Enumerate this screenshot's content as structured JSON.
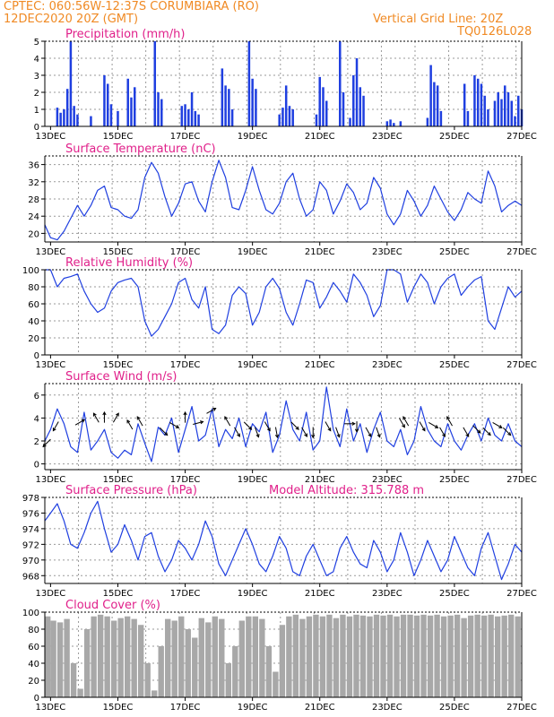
{
  "header": {
    "line1_left": "CPTEC:   060:56W-12:37S   CORUMBIARA (RO)",
    "line2_left": "12DEC2020 20Z (GMT)",
    "line2_right": "Vertical Grid Line: 20Z",
    "line3_right": "TQ0126L028"
  },
  "colors": {
    "header": "#f08a24",
    "title": "#e0208a",
    "line": "#1f3fe0",
    "bar": "#1f3fe0",
    "cloud": "#a8a8a8"
  },
  "x_axis": {
    "tick_labels": [
      "13DEC",
      "15DEC",
      "17DEC",
      "19DEC",
      "21DEC",
      "23DEC",
      "25DEC",
      "27DEC"
    ],
    "start_day": 12.83,
    "end_day": 27.0,
    "label_days": [
      13,
      15,
      17,
      19,
      21,
      23,
      25,
      27
    ],
    "grid_days": [
      12.83,
      13.83,
      14.83,
      15.83,
      16.83,
      17.83,
      18.83,
      19.83,
      20.83,
      21.83,
      22.83,
      23.83,
      24.83,
      25.83,
      26.83
    ]
  },
  "chart_data": [
    {
      "type": "bar",
      "title": "Precipitation (mm/h)",
      "ylim": [
        0,
        5
      ],
      "yticks": [
        "0",
        "1",
        "2",
        "3",
        "4",
        "5"
      ],
      "events": [
        [
          13.2,
          1.1
        ],
        [
          13.3,
          0.8
        ],
        [
          13.4,
          1.0
        ],
        [
          13.5,
          2.2
        ],
        [
          13.6,
          5.0
        ],
        [
          13.7,
          1.2
        ],
        [
          13.8,
          0.7
        ],
        [
          14.2,
          0.6
        ],
        [
          14.6,
          3.0
        ],
        [
          14.7,
          2.5
        ],
        [
          14.8,
          1.3
        ],
        [
          15.0,
          0.9
        ],
        [
          15.3,
          2.8
        ],
        [
          15.4,
          1.7
        ],
        [
          15.5,
          2.3
        ],
        [
          16.9,
          1.2
        ],
        [
          17.0,
          1.3
        ],
        [
          17.1,
          1.0
        ],
        [
          17.2,
          2.0
        ],
        [
          17.3,
          0.9
        ],
        [
          17.4,
          0.7
        ],
        [
          18.9,
          5.0
        ],
        [
          19.0,
          2.8
        ],
        [
          19.1,
          2.2
        ],
        [
          20.9,
          0.7
        ],
        [
          21.0,
          2.9
        ],
        [
          21.1,
          2.3
        ],
        [
          21.2,
          1.5
        ],
        [
          21.9,
          0.5
        ],
        [
          22.0,
          3.0
        ],
        [
          22.1,
          4.0
        ],
        [
          22.2,
          2.3
        ],
        [
          22.3,
          1.8
        ],
        [
          24.2,
          0.5
        ],
        [
          24.3,
          3.6
        ],
        [
          24.4,
          2.6
        ],
        [
          24.5,
          2.4
        ],
        [
          24.6,
          0.9
        ],
        [
          25.3,
          2.5
        ],
        [
          25.4,
          0.9
        ],
        [
          26.8,
          0.6
        ],
        [
          26.9,
          1.8
        ],
        [
          27.0,
          1.0
        ],
        [
          16.1,
          5.0
        ],
        [
          16.2,
          2.0
        ],
        [
          16.3,
          1.6
        ],
        [
          18.1,
          3.4
        ],
        [
          18.2,
          2.4
        ],
        [
          18.3,
          2.2
        ],
        [
          18.4,
          1.0
        ],
        [
          19.8,
          0.7
        ],
        [
          19.9,
          1.1
        ],
        [
          20.0,
          2.4
        ],
        [
          20.1,
          1.2
        ],
        [
          20.2,
          1.0
        ],
        [
          21.6,
          5.0
        ],
        [
          21.7,
          2.0
        ],
        [
          23.0,
          0.3
        ],
        [
          23.1,
          0.4
        ],
        [
          23.2,
          0.2
        ],
        [
          23.4,
          0.3
        ],
        [
          25.6,
          3.0
        ],
        [
          25.7,
          2.8
        ],
        [
          25.8,
          2.5
        ],
        [
          25.9,
          1.8
        ],
        [
          26.0,
          1.0
        ],
        [
          26.2,
          1.5
        ],
        [
          26.3,
          2.0
        ],
        [
          26.4,
          1.6
        ],
        [
          26.5,
          2.4
        ],
        [
          26.6,
          2.0
        ],
        [
          26.7,
          1.5
        ]
      ]
    },
    {
      "type": "line",
      "title": "Surface Temperature (nC)",
      "ylim": [
        18,
        38
      ],
      "yticks": [
        "20",
        "24",
        "28",
        "32",
        "36"
      ],
      "x": [
        12.83,
        13.0,
        13.2,
        13.4,
        13.6,
        13.8,
        14.0,
        14.2,
        14.4,
        14.6,
        14.8,
        15.0,
        15.2,
        15.4,
        15.6,
        15.8,
        16.0,
        16.2,
        16.4,
        16.6,
        16.8,
        17.0,
        17.2,
        17.4,
        17.6,
        17.8,
        18.0,
        18.2,
        18.4,
        18.6,
        18.8,
        19.0,
        19.2,
        19.4,
        19.6,
        19.8,
        20.0,
        20.2,
        20.4,
        20.6,
        20.8,
        21.0,
        21.2,
        21.4,
        21.6,
        21.8,
        22.0,
        22.2,
        22.4,
        22.6,
        22.8,
        23.0,
        23.2,
        23.4,
        23.6,
        23.8,
        24.0,
        24.2,
        24.4,
        24.6,
        24.8,
        25.0,
        25.2,
        25.4,
        25.6,
        25.8,
        26.0,
        26.2,
        26.4,
        26.6,
        26.8,
        27.0
      ],
      "values": [
        22.0,
        19.0,
        18.5,
        20.5,
        23.5,
        26.5,
        24.0,
        26.5,
        30.0,
        31.0,
        26.0,
        25.5,
        24.0,
        23.5,
        25.5,
        33.0,
        36.5,
        34.0,
        28.5,
        24.0,
        27.0,
        31.5,
        32.0,
        27.5,
        25.0,
        32.0,
        37.0,
        33.0,
        26.0,
        25.5,
        30.0,
        35.5,
        30.0,
        25.5,
        24.5,
        27.0,
        32.0,
        34.0,
        28.0,
        24.0,
        25.5,
        32.0,
        30.0,
        24.5,
        27.5,
        31.5,
        29.5,
        25.5,
        27.0,
        33.0,
        30.5,
        24.5,
        22.0,
        24.5,
        30.0,
        27.5,
        24.0,
        26.5,
        31.0,
        28.0,
        25.0,
        23.0,
        25.5,
        29.5,
        28.0,
        27.0,
        34.5,
        31.0,
        25.0,
        26.5,
        27.5,
        26.5
      ]
    },
    {
      "type": "line",
      "title": "Relative Humidity (%)",
      "ylim": [
        0,
        100
      ],
      "yticks": [
        "0",
        "20",
        "40",
        "60",
        "80",
        "100"
      ],
      "x": [
        12.83,
        13.0,
        13.2,
        13.4,
        13.6,
        13.8,
        14.0,
        14.2,
        14.4,
        14.6,
        14.8,
        15.0,
        15.2,
        15.4,
        15.6,
        15.8,
        16.0,
        16.2,
        16.4,
        16.6,
        16.8,
        17.0,
        17.2,
        17.4,
        17.6,
        17.8,
        18.0,
        18.2,
        18.4,
        18.6,
        18.8,
        19.0,
        19.2,
        19.4,
        19.6,
        19.8,
        20.0,
        20.2,
        20.4,
        20.6,
        20.8,
        21.0,
        21.2,
        21.4,
        21.6,
        21.8,
        22.0,
        22.2,
        22.4,
        22.6,
        22.8,
        23.0,
        23.2,
        23.4,
        23.6,
        23.8,
        24.0,
        24.2,
        24.4,
        24.6,
        24.8,
        25.0,
        25.2,
        25.4,
        25.6,
        25.8,
        26.0,
        26.2,
        26.4,
        26.6,
        26.8,
        27.0
      ],
      "values": [
        100,
        100,
        80,
        90,
        92,
        95,
        75,
        60,
        50,
        55,
        75,
        85,
        88,
        90,
        80,
        40,
        22,
        30,
        45,
        60,
        85,
        90,
        65,
        55,
        80,
        30,
        25,
        35,
        70,
        80,
        72,
        35,
        50,
        80,
        90,
        78,
        50,
        35,
        60,
        88,
        85,
        55,
        68,
        85,
        75,
        62,
        95,
        85,
        70,
        45,
        58,
        100,
        100,
        95,
        62,
        80,
        95,
        85,
        60,
        80,
        90,
        95,
        70,
        80,
        88,
        92,
        40,
        30,
        55,
        80,
        68,
        75
      ]
    },
    {
      "type": "line",
      "title": "Surface Wind (m/s)",
      "ylim": [
        -0.5,
        7
      ],
      "yticks": [
        "0",
        "2",
        "4",
        "6"
      ],
      "x": [
        12.83,
        13.0,
        13.2,
        13.4,
        13.6,
        13.8,
        14.0,
        14.2,
        14.4,
        14.6,
        14.8,
        15.0,
        15.2,
        15.4,
        15.6,
        15.8,
        16.0,
        16.2,
        16.4,
        16.6,
        16.8,
        17.0,
        17.2,
        17.4,
        17.6,
        17.8,
        18.0,
        18.2,
        18.4,
        18.6,
        18.8,
        19.0,
        19.2,
        19.4,
        19.6,
        19.8,
        20.0,
        20.2,
        20.4,
        20.6,
        20.8,
        21.0,
        21.2,
        21.4,
        21.6,
        21.8,
        22.0,
        22.2,
        22.4,
        22.6,
        22.8,
        23.0,
        23.2,
        23.4,
        23.6,
        23.8,
        24.0,
        24.2,
        24.4,
        24.6,
        24.8,
        25.0,
        25.2,
        25.4,
        25.6,
        25.8,
        26.0,
        26.2,
        26.4,
        26.6,
        26.8,
        27.0
      ],
      "values": [
        2.0,
        3.0,
        4.8,
        3.5,
        1.5,
        1.0,
        4.5,
        1.2,
        2.0,
        3.0,
        1.0,
        0.5,
        1.2,
        0.8,
        3.5,
        1.8,
        0.2,
        3.2,
        2.5,
        4.0,
        1.0,
        3.0,
        5.0,
        2.0,
        2.5,
        4.8,
        1.5,
        3.0,
        2.2,
        4.0,
        1.5,
        3.5,
        2.8,
        4.5,
        1.0,
        2.5,
        5.5,
        3.0,
        2.0,
        4.5,
        1.2,
        2.0,
        6.7,
        3.0,
        1.5,
        4.8,
        2.0,
        3.5,
        1.0,
        3.0,
        4.5,
        2.0,
        1.5,
        3.0,
        0.8,
        2.0,
        5.0,
        3.0,
        2.0,
        1.5,
        3.5,
        2.0,
        1.2,
        2.5,
        3.5,
        2.0,
        4.0,
        2.5,
        2.0,
        3.5,
        2.0,
        1.5
      ],
      "arrows": [
        [
          12.95,
          2.0,
          225
        ],
        [
          13.2,
          3.5,
          210
        ],
        [
          13.8,
          3.5,
          60
        ],
        [
          14.4,
          3.8,
          330
        ],
        [
          14.6,
          3.8,
          0
        ],
        [
          14.9,
          3.8,
          30
        ],
        [
          15.4,
          3.2,
          330
        ],
        [
          15.7,
          3.5,
          330
        ],
        [
          16.3,
          3.0,
          135
        ],
        [
          16.6,
          3.5,
          120
        ],
        [
          17.0,
          3.8,
          0
        ],
        [
          17.3,
          3.5,
          75
        ],
        [
          17.7,
          4.5,
          60
        ],
        [
          18.3,
          3.5,
          330
        ],
        [
          18.5,
          3.0,
          150
        ],
        [
          18.8,
          3.5,
          135
        ],
        [
          19.1,
          3.0,
          160
        ],
        [
          19.4,
          3.5,
          150
        ],
        [
          19.7,
          3.0,
          170
        ],
        [
          20.2,
          3.5,
          135
        ],
        [
          20.5,
          3.0,
          150
        ],
        [
          20.8,
          3.0,
          180
        ],
        [
          21.2,
          3.5,
          150
        ],
        [
          21.5,
          3.0,
          160
        ],
        [
          21.8,
          3.5,
          90
        ],
        [
          22.1,
          3.5,
          180
        ],
        [
          22.4,
          3.0,
          150
        ],
        [
          22.7,
          3.0,
          160
        ],
        [
          23.4,
          3.8,
          150
        ],
        [
          23.6,
          3.5,
          330
        ],
        [
          24.0,
          3.5,
          150
        ],
        [
          24.3,
          3.5,
          120
        ],
        [
          24.6,
          3.0,
          150
        ],
        [
          24.9,
          3.5,
          330
        ],
        [
          25.3,
          3.0,
          150
        ],
        [
          25.6,
          3.2,
          135
        ],
        [
          25.9,
          3.0,
          135
        ],
        [
          26.2,
          3.5,
          120
        ],
        [
          26.5,
          3.0,
          135
        ]
      ]
    },
    {
      "type": "line",
      "title": "Surface Pressure (hPa)",
      "annotation": "Model Altitude: 315.788  m",
      "ylim": [
        967,
        978
      ],
      "yticks": [
        "968",
        "970",
        "972",
        "974",
        "976",
        "978"
      ],
      "x": [
        12.83,
        13.0,
        13.2,
        13.4,
        13.6,
        13.8,
        14.0,
        14.2,
        14.4,
        14.6,
        14.8,
        15.0,
        15.2,
        15.4,
        15.6,
        15.8,
        16.0,
        16.2,
        16.4,
        16.6,
        16.8,
        17.0,
        17.2,
        17.4,
        17.6,
        17.8,
        18.0,
        18.2,
        18.4,
        18.6,
        18.8,
        19.0,
        19.2,
        19.4,
        19.6,
        19.8,
        20.0,
        20.2,
        20.4,
        20.6,
        20.8,
        21.0,
        21.2,
        21.4,
        21.6,
        21.8,
        22.0,
        22.2,
        22.4,
        22.6,
        22.8,
        23.0,
        23.2,
        23.4,
        23.6,
        23.8,
        24.0,
        24.2,
        24.4,
        24.6,
        24.8,
        25.0,
        25.2,
        25.4,
        25.6,
        25.8,
        26.0,
        26.2,
        26.4,
        26.6,
        26.8,
        27.0
      ],
      "values": [
        975.0,
        976.0,
        977.2,
        975.0,
        972.0,
        971.5,
        973.5,
        976.0,
        977.5,
        974.0,
        971.0,
        972.0,
        974.5,
        972.5,
        970.0,
        973.0,
        973.5,
        970.5,
        968.5,
        970.0,
        972.5,
        971.5,
        970.0,
        972.0,
        975.0,
        973.0,
        969.5,
        968.0,
        970.0,
        972.0,
        974.0,
        972.0,
        969.5,
        968.5,
        970.5,
        973.0,
        971.5,
        968.5,
        968.0,
        970.5,
        972.0,
        970.0,
        968.0,
        968.5,
        971.5,
        973.0,
        971.0,
        969.5,
        969.0,
        972.5,
        971.0,
        968.5,
        970.0,
        973.5,
        971.0,
        968.0,
        970.0,
        972.5,
        970.5,
        968.5,
        970.0,
        973.0,
        971.0,
        969.0,
        968.0,
        971.5,
        973.5,
        970.5,
        967.5,
        969.5,
        972.0,
        971.0
      ]
    },
    {
      "type": "area",
      "title": "Cloud Cover (%)",
      "ylim": [
        0,
        100
      ],
      "yticks": [
        "0",
        "20",
        "40",
        "60",
        "80",
        "100"
      ],
      "x": [
        12.83,
        13.0,
        13.2,
        13.4,
        13.6,
        13.8,
        14.0,
        14.2,
        14.4,
        14.6,
        14.8,
        15.0,
        15.2,
        15.4,
        15.6,
        15.8,
        16.0,
        16.2,
        16.4,
        16.6,
        16.8,
        17.0,
        17.2,
        17.4,
        17.6,
        17.8,
        18.0,
        18.2,
        18.4,
        18.6,
        18.8,
        19.0,
        19.2,
        19.4,
        19.6,
        19.8,
        20.0,
        20.2,
        20.4,
        20.6,
        20.8,
        21.0,
        21.2,
        21.4,
        21.6,
        21.8,
        22.0,
        22.2,
        22.4,
        22.6,
        22.8,
        23.0,
        23.2,
        23.4,
        23.6,
        23.8,
        24.0,
        24.2,
        24.4,
        24.6,
        24.8,
        25.0,
        25.2,
        25.4,
        25.6,
        25.8,
        26.0,
        26.2,
        26.4,
        26.6,
        26.8,
        27.0
      ],
      "values": [
        95,
        90,
        88,
        92,
        40,
        10,
        80,
        95,
        97,
        95,
        90,
        93,
        95,
        92,
        85,
        40,
        8,
        60,
        92,
        90,
        95,
        80,
        70,
        93,
        88,
        95,
        92,
        40,
        60,
        90,
        95,
        95,
        92,
        60,
        30,
        85,
        95,
        97,
        92,
        95,
        97,
        95,
        97,
        93,
        97,
        95,
        97,
        96,
        95,
        97,
        96,
        97,
        95,
        97,
        97,
        96,
        97,
        96,
        97,
        95,
        96,
        97,
        93,
        96,
        97,
        96,
        97,
        95,
        96,
        97,
        95,
        96
      ]
    }
  ]
}
